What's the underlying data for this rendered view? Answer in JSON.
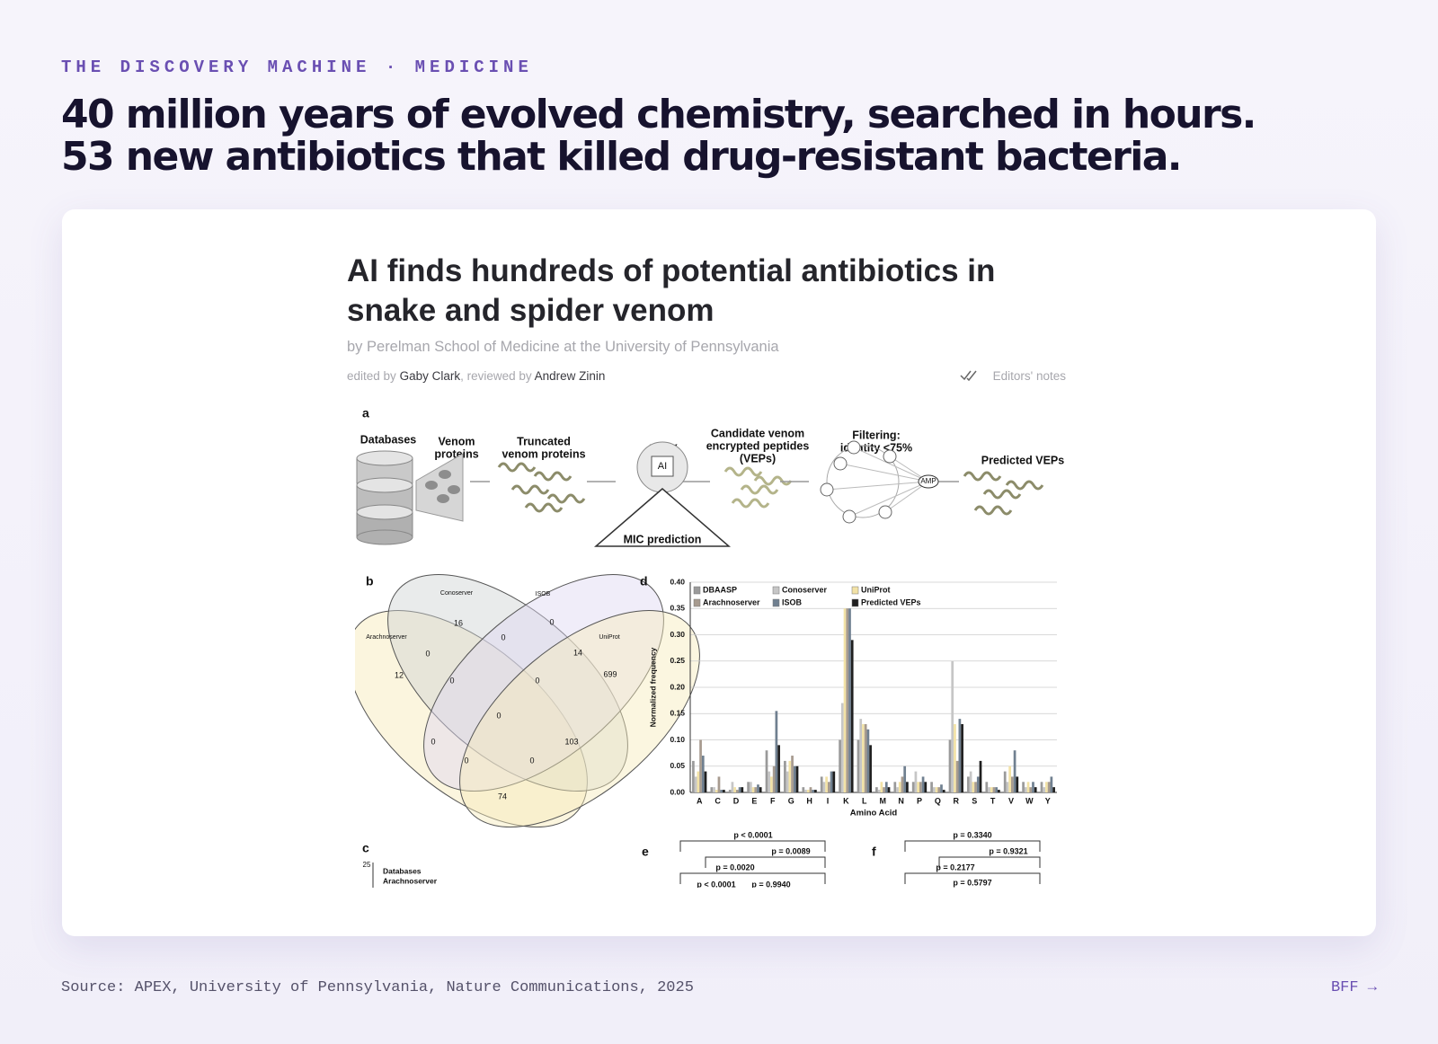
{
  "header": {
    "kicker": "THE DISCOVERY MACHINE · MEDICINE",
    "title": "40 million years of evolved chemistry, searched in hours. 53 new antibiotics that killed drug-resistant bacteria."
  },
  "article": {
    "title": "AI finds hundreds of potential antibiotics in snake and spider venom",
    "byline": "by Perelman School of Medicine at the University of Pennsylvania",
    "edited_label": "edited by",
    "editor": "Gaby Clark",
    "reviewed_label": ", reviewed by",
    "reviewer": "Andrew Zinin",
    "notes": "Editors' notes"
  },
  "figure": {
    "panel_a": {
      "label": "a",
      "steps": [
        [
          "Databases"
        ],
        [
          "Venom",
          "proteins"
        ],
        [
          "Truncated",
          "venom proteins"
        ],
        [
          "APEX"
        ],
        [
          "Candidate venom",
          "encrypted peptides",
          "(VEPs)"
        ],
        [
          "Filtering:",
          "identity <75%"
        ],
        [
          "Predicted VEPs"
        ]
      ],
      "chip": "AI",
      "network_node": "AMP",
      "mic": "MIC prediction"
    },
    "panel_b": {
      "label": "b",
      "sets": [
        "Conoserver",
        "ISOB",
        "UniProt",
        "Arachnoserver"
      ],
      "counts": [
        "16",
        "0",
        "0",
        "14",
        "12",
        "0",
        "0",
        "0",
        "699",
        "0",
        "0",
        "103",
        "0",
        "0",
        "74"
      ]
    },
    "panel_c": {
      "label": "c",
      "tick": "25",
      "legend": [
        "Databases",
        "Arachnoserver"
      ]
    },
    "panel_d": {
      "label": "d",
      "type": "bar",
      "y_label": "Normalized frequency",
      "x_label": "Amino Acid",
      "categories": [
        "A",
        "C",
        "D",
        "E",
        "F",
        "G",
        "H",
        "I",
        "K",
        "L",
        "M",
        "N",
        "P",
        "Q",
        "R",
        "S",
        "T",
        "V",
        "W",
        "Y"
      ],
      "ylim": [
        0,
        0.4
      ],
      "yticks": [
        {
          "value": 0,
          "label": "0.00"
        },
        {
          "value": 0.05,
          "label": "0.05"
        },
        {
          "value": 0.1,
          "label": "0.10"
        },
        {
          "value": 0.15,
          "label": "0.15"
        },
        {
          "value": 0.2,
          "label": "0.20"
        },
        {
          "value": 0.25,
          "label": "0.25"
        },
        {
          "value": 0.3,
          "label": "0.30"
        },
        {
          "value": 0.35,
          "label": "0.35"
        },
        {
          "value": 0.4,
          "label": "0.40"
        }
      ],
      "grid": true,
      "series": [
        {
          "name": "DBAASP",
          "color": "#9a9a9a",
          "values": [
            0.06,
            0.01,
            0.005,
            0.02,
            0.08,
            0.06,
            0.01,
            0.03,
            0.1,
            0.1,
            0.01,
            0.02,
            0.02,
            0.02,
            0.1,
            0.03,
            0.02,
            0.04,
            0.02,
            0.02
          ]
        },
        {
          "name": "Conoserver",
          "color": "#c6c6c6",
          "values": [
            0.03,
            0.01,
            0.02,
            0.02,
            0.04,
            0.04,
            0.005,
            0.02,
            0.17,
            0.14,
            0.005,
            0.01,
            0.04,
            0.01,
            0.25,
            0.04,
            0.01,
            0.02,
            0.01,
            0.01
          ]
        },
        {
          "name": "UniProt",
          "color": "#f2e2a6",
          "values": [
            0.04,
            0.005,
            0.01,
            0.01,
            0.03,
            0.06,
            0.005,
            0.03,
            0.35,
            0.13,
            0.02,
            0.02,
            0.02,
            0.01,
            0.13,
            0.02,
            0.01,
            0.05,
            0.02,
            0.02
          ]
        },
        {
          "name": "Arachnoserver",
          "color": "#a79b8f",
          "values": [
            0.1,
            0.03,
            0.005,
            0.01,
            0.05,
            0.07,
            0.01,
            0.02,
            0.35,
            0.13,
            0.01,
            0.03,
            0.02,
            0.01,
            0.06,
            0.02,
            0.01,
            0.03,
            0.01,
            0.02
          ]
        },
        {
          "name": "ISOB",
          "color": "#708090",
          "values": [
            0.07,
            0.005,
            0.01,
            0.015,
            0.155,
            0.05,
            0.005,
            0.04,
            0.35,
            0.12,
            0.02,
            0.05,
            0.03,
            0.015,
            0.14,
            0.03,
            0.01,
            0.08,
            0.02,
            0.03
          ]
        },
        {
          "name": "Predicted VEPs",
          "color": "#1f1f1f",
          "values": [
            0.04,
            0.005,
            0.01,
            0.01,
            0.09,
            0.05,
            0.005,
            0.04,
            0.29,
            0.09,
            0.01,
            0.02,
            0.02,
            0.005,
            0.13,
            0.06,
            0.005,
            0.03,
            0.01,
            0.01
          ]
        }
      ]
    },
    "panel_e": {
      "label": "e",
      "pvalues": [
        "p < 0.0001",
        "p = 0.0089",
        "p = 0.0020",
        "p < 0.0001",
        "p = 0.9940"
      ]
    },
    "panel_f": {
      "label": "f",
      "pvalues": [
        "p = 0.3340",
        "p = 0.9321",
        "p = 0.2177",
        "p = 0.5797"
      ]
    }
  },
  "footer": {
    "source": "Source: APEX, University of Pennsylvania, Nature Communications, 2025",
    "link": "BFF →"
  }
}
